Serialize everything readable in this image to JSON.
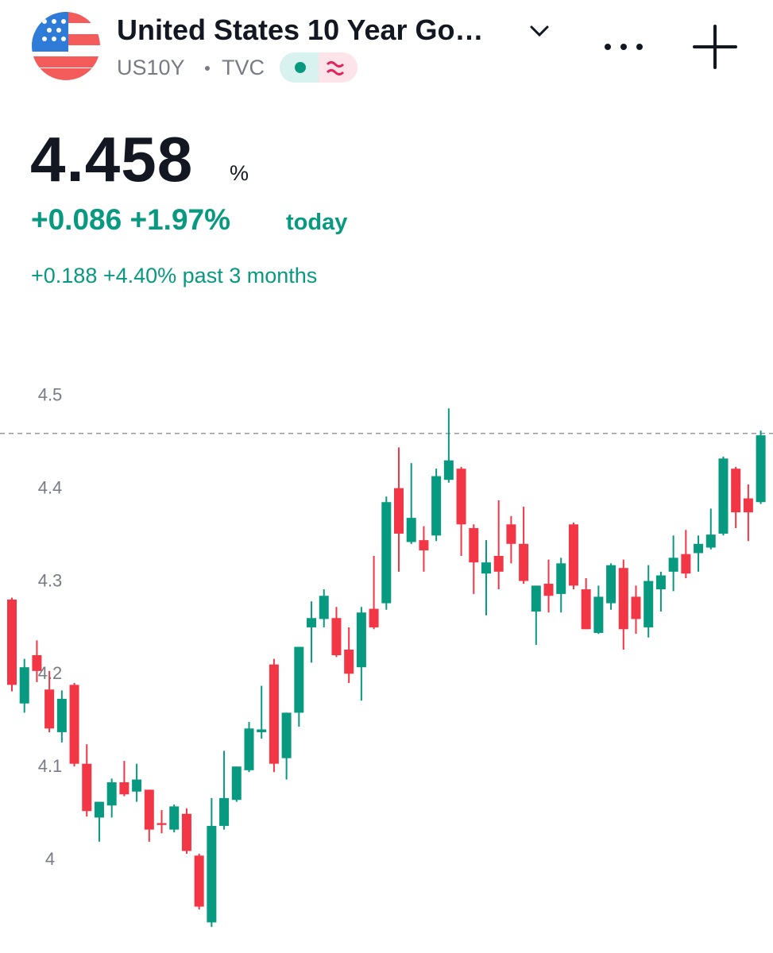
{
  "header": {
    "title": "United States 10 Year Go…",
    "symbol": "US10Y",
    "exchange": "TVC",
    "unit": "%",
    "change_today": "+0.086 +1.97%",
    "today_label": "today",
    "change_period": "+0.188 +4.40% past 3 months"
  },
  "chart_data": {
    "type": "candlestick",
    "last": 4.458,
    "up_color": "#089981",
    "down_color": "#f23645",
    "ylim": [
      3.898,
      4.54
    ],
    "yticks": [
      4,
      4.1,
      4.2,
      4.3,
      4.4,
      4.5
    ],
    "open": [
      4.279,
      4.167,
      4.219,
      4.182,
      4.136,
      4.187,
      4.102,
      4.044,
      4.057,
      4.082,
      4.072,
      4.074,
      4.038,
      4.031,
      4.048,
      4.003,
      3.931,
      4.035,
      4.063,
      4.095,
      4.136,
      4.209,
      4.108,
      4.157,
      4.249,
      4.258,
      4.259,
      4.225,
      4.206,
      4.269,
      4.275,
      4.399,
      4.341,
      4.343,
      4.348,
      4.408,
      4.42,
      4.356,
      4.307,
      4.326,
      4.36,
      4.339,
      4.266,
      4.296,
      4.285,
      4.36,
      4.29,
      4.243,
      4.275,
      4.313,
      4.282,
      4.249,
      4.29,
      4.309,
      4.328,
      4.329,
      4.335,
      4.35,
      4.42,
      4.388,
      4.384
    ],
    "high": [
      4.281,
      4.215,
      4.235,
      4.202,
      4.181,
      4.189,
      4.123,
      4.061,
      4.086,
      4.105,
      4.102,
      4.074,
      4.052,
      4.058,
      4.054,
      4.005,
      4.065,
      4.116,
      4.099,
      4.147,
      4.186,
      4.215,
      4.157,
      4.228,
      4.277,
      4.29,
      4.271,
      4.249,
      4.271,
      4.326,
      4.39,
      4.443,
      4.426,
      4.358,
      4.42,
      4.485,
      4.422,
      4.36,
      4.343,
      4.386,
      4.369,
      4.379,
      4.294,
      4.322,
      4.324,
      4.362,
      4.302,
      4.294,
      4.318,
      4.322,
      4.294,
      4.316,
      4.309,
      4.348,
      4.354,
      4.348,
      4.377,
      4.433,
      4.422,
      4.403,
      4.461
    ],
    "low": [
      4.18,
      4.157,
      4.19,
      4.136,
      4.125,
      4.099,
      4.045,
      4.018,
      4.044,
      4.067,
      4.061,
      4.018,
      4.027,
      4.028,
      4.005,
      3.945,
      3.926,
      4.031,
      4.061,
      4.093,
      4.129,
      4.093,
      4.085,
      4.142,
      4.211,
      4.249,
      4.217,
      4.189,
      4.17,
      4.247,
      4.268,
      4.309,
      4.339,
      4.309,
      4.342,
      4.405,
      4.326,
      4.285,
      4.262,
      4.29,
      4.318,
      4.296,
      4.23,
      4.265,
      4.265,
      4.29,
      4.247,
      4.242,
      4.268,
      4.225,
      4.242,
      4.238,
      4.266,
      4.288,
      4.302,
      4.309,
      4.333,
      4.348,
      4.356,
      4.342,
      4.382
    ],
    "close": [
      4.187,
      4.206,
      4.202,
      4.14,
      4.172,
      4.102,
      4.051,
      4.061,
      4.082,
      4.069,
      4.085,
      4.031,
      4.036,
      4.056,
      4.008,
      3.948,
      4.035,
      4.065,
      4.099,
      4.14,
      4.139,
      4.102,
      4.157,
      4.228,
      4.259,
      4.283,
      4.219,
      4.199,
      4.265,
      4.249,
      4.384,
      4.35,
      4.367,
      4.332,
      4.412,
      4.429,
      4.36,
      4.319,
      4.319,
      4.309,
      4.339,
      4.299,
      4.294,
      4.283,
      4.318,
      4.294,
      4.247,
      4.282,
      4.316,
      4.247,
      4.258,
      4.299,
      4.305,
      4.324,
      4.307,
      4.339,
      4.349,
      4.431,
      4.373,
      4.373,
      4.456
    ]
  }
}
